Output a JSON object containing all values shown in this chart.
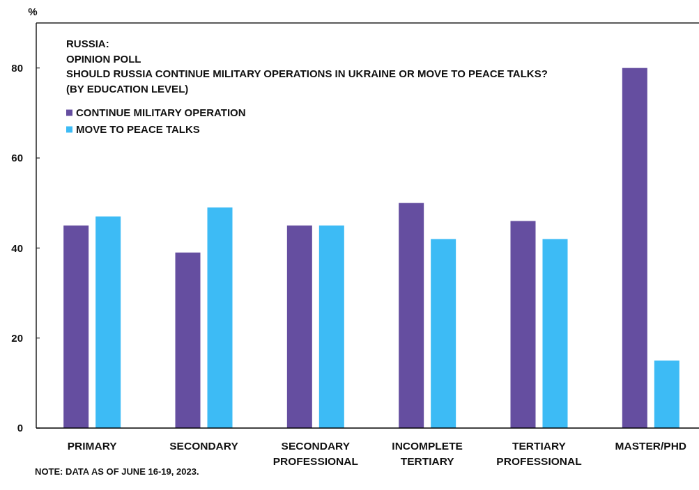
{
  "chart_data": {
    "type": "bar",
    "title": "RUSSIA:\nOPINION POLL",
    "subtitle": "SHOULD RUSSIA CONTINUE MILITARY OPERATIONS IN UKRAINE OR MOVE TO PEACE TALKS?\n(BY EDUCATION LEVEL)",
    "ylabel": "%",
    "categories": [
      "PRIMARY",
      "SECONDARY",
      "SECONDARY PROFESSIONAL",
      "INCOMPLETE TERTIARY",
      "TERTIARY PROFESSIONAL",
      "MASTER/PHD"
    ],
    "series": [
      {
        "name": "CONTINUE MILITARY OPERATION",
        "color": "#654ea0",
        "values": [
          45,
          39,
          45,
          50,
          46,
          80
        ]
      },
      {
        "name": "MOVE TO PEACE TALKS",
        "color": "#3dbbf5",
        "values": [
          47,
          49,
          45,
          42,
          42,
          15
        ]
      }
    ],
    "ylim": [
      0,
      90
    ],
    "yticks": [
      0,
      20,
      40,
      60,
      80
    ],
    "legend": "top left",
    "annotations": [
      "NOTE: DATA AS OF JUNE 16-19, 2023."
    ]
  }
}
